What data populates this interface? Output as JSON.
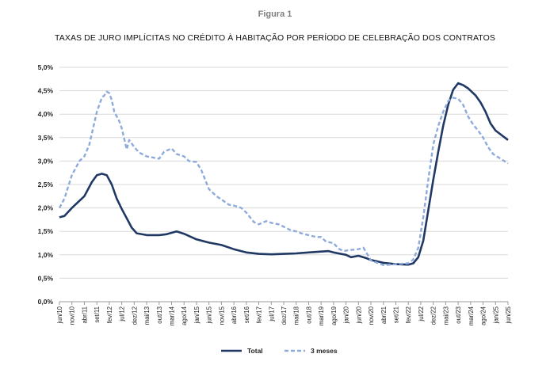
{
  "figure_label": "Figura 1",
  "chart_data": {
    "type": "line",
    "title": "TAXAS DE JURO IMPLÍCITAS NO CRÉDITO À HABITAÇÃO POR PERÍODO DE CELEBRAÇÃO DOS CONTRATOS",
    "xlabel": "",
    "ylabel": "",
    "ylim": [
      0,
      5
    ],
    "y_ticks": [
      "0,0%",
      "0,5%",
      "1,0%",
      "1,5%",
      "2,0%",
      "2,5%",
      "3,0%",
      "3,5%",
      "4,0%",
      "4,5%",
      "5,0%"
    ],
    "x_ticks": [
      "jun/10",
      "nov/10",
      "abr/11",
      "set/11",
      "fev/12",
      "jul/12",
      "dez/12",
      "mai/13",
      "out/13",
      "mar/14",
      "ago/14",
      "jan/15",
      "jun/15",
      "nov/15",
      "abr/16",
      "set/16",
      "fev/17",
      "jul/17",
      "dez/17",
      "mai/18",
      "out/18",
      "mar/19",
      "ago/19",
      "jan/20",
      "jun/20",
      "nov/20",
      "abr/21",
      "set/21",
      "fev/22",
      "jul/22",
      "dez/22",
      "mai/23",
      "out/23",
      "mar/24",
      "ago/24",
      "jan/25",
      "jun/25"
    ],
    "grid": "horizontal",
    "legend_position": "bottom",
    "colors": {
      "total": "#203864",
      "tres_meses": "#8eaadb"
    },
    "series": [
      {
        "name": "Total",
        "style": "solid",
        "points": [
          [
            "jun/10",
            1.8
          ],
          [
            "ago/10",
            1.83
          ],
          [
            "nov/10",
            2.0
          ],
          [
            "abr/11",
            2.25
          ],
          [
            "jul/11",
            2.55
          ],
          [
            "set/11",
            2.7
          ],
          [
            "nov/11",
            2.73
          ],
          [
            "jan/12",
            2.7
          ],
          [
            "mar/12",
            2.5
          ],
          [
            "mai/12",
            2.2
          ],
          [
            "jul/12",
            1.98
          ],
          [
            "set/12",
            1.78
          ],
          [
            "nov/12",
            1.58
          ],
          [
            "jan/13",
            1.46
          ],
          [
            "mai/13",
            1.42
          ],
          [
            "out/13",
            1.42
          ],
          [
            "jan/14",
            1.44
          ],
          [
            "mai/14",
            1.5
          ],
          [
            "ago/14",
            1.45
          ],
          [
            "jan/15",
            1.33
          ],
          [
            "jun/15",
            1.26
          ],
          [
            "nov/15",
            1.21
          ],
          [
            "abr/16",
            1.12
          ],
          [
            "set/16",
            1.05
          ],
          [
            "fev/17",
            1.02
          ],
          [
            "jul/17",
            1.01
          ],
          [
            "dez/17",
            1.02
          ],
          [
            "mai/18",
            1.03
          ],
          [
            "out/18",
            1.05
          ],
          [
            "mar/19",
            1.07
          ],
          [
            "jun/19",
            1.08
          ],
          [
            "ago/19",
            1.05
          ],
          [
            "nov/19",
            1.02
          ],
          [
            "jan/20",
            1.0
          ],
          [
            "mar/20",
            0.95
          ],
          [
            "jun/20",
            0.98
          ],
          [
            "set/20",
            0.93
          ],
          [
            "nov/20",
            0.89
          ],
          [
            "abr/21",
            0.83
          ],
          [
            "set/21",
            0.8
          ],
          [
            "fev/22",
            0.79
          ],
          [
            "abr/22",
            0.82
          ],
          [
            "jun/22",
            0.95
          ],
          [
            "ago/22",
            1.3
          ],
          [
            "out/22",
            1.95
          ],
          [
            "dez/22",
            2.6
          ],
          [
            "fev/23",
            3.2
          ],
          [
            "abr/23",
            3.75
          ],
          [
            "jun/23",
            4.2
          ],
          [
            "ago/23",
            4.52
          ],
          [
            "out/23",
            4.66
          ],
          [
            "dez/23",
            4.62
          ],
          [
            "fev/24",
            4.55
          ],
          [
            "mar/24",
            4.5
          ],
          [
            "mai/24",
            4.4
          ],
          [
            "jul/24",
            4.25
          ],
          [
            "set/24",
            4.05
          ],
          [
            "nov/24",
            3.8
          ],
          [
            "jan/25",
            3.65
          ],
          [
            "jun/25",
            3.45
          ]
        ]
      },
      {
        "name": "3 meses",
        "style": "dashed",
        "points": [
          [
            "jun/10",
            2.0
          ],
          [
            "ago/10",
            2.2
          ],
          [
            "nov/10",
            2.7
          ],
          [
            "fev/11",
            3.0
          ],
          [
            "abr/11",
            3.1
          ],
          [
            "jun/11",
            3.35
          ],
          [
            "set/11",
            4.05
          ],
          [
            "nov/11",
            4.35
          ],
          [
            "dez/11",
            4.4
          ],
          [
            "jan/12",
            4.48
          ],
          [
            "fev/12",
            4.45
          ],
          [
            "mar/12",
            4.3
          ],
          [
            "abr/12",
            4.05
          ],
          [
            "jun/12",
            3.85
          ],
          [
            "jul/12",
            3.7
          ],
          [
            "set/12",
            3.25
          ],
          [
            "out/12",
            3.45
          ],
          [
            "dez/12",
            3.3
          ],
          [
            "fev/13",
            3.18
          ],
          [
            "mai/13",
            3.1
          ],
          [
            "out/13",
            3.05
          ],
          [
            "dez/13",
            3.2
          ],
          [
            "mar/14",
            3.27
          ],
          [
            "mai/14",
            3.15
          ],
          [
            "ago/14",
            3.1
          ],
          [
            "out/14",
            3.0
          ],
          [
            "jan/15",
            2.98
          ],
          [
            "mar/15",
            2.8
          ],
          [
            "jun/15",
            2.4
          ],
          [
            "set/15",
            2.25
          ],
          [
            "nov/15",
            2.18
          ],
          [
            "fev/16",
            2.07
          ],
          [
            "abr/16",
            2.05
          ],
          [
            "jul/16",
            2.0
          ],
          [
            "set/16",
            1.9
          ],
          [
            "dez/16",
            1.7
          ],
          [
            "fev/17",
            1.65
          ],
          [
            "mai/17",
            1.72
          ],
          [
            "jul/17",
            1.68
          ],
          [
            "out/17",
            1.65
          ],
          [
            "dez/17",
            1.6
          ],
          [
            "mar/18",
            1.52
          ],
          [
            "mai/18",
            1.5
          ],
          [
            "jul/18",
            1.46
          ],
          [
            "out/18",
            1.42
          ],
          [
            "jan/19",
            1.38
          ],
          [
            "mar/19",
            1.38
          ],
          [
            "mai/19",
            1.28
          ],
          [
            "ago/19",
            1.25
          ],
          [
            "out/19",
            1.13
          ],
          [
            "dez/19",
            1.08
          ],
          [
            "fev/20",
            1.1
          ],
          [
            "jun/20",
            1.12
          ],
          [
            "ago/20",
            1.15
          ],
          [
            "nov/20",
            0.88
          ],
          [
            "abr/21",
            0.78
          ],
          [
            "set/21",
            0.8
          ],
          [
            "fev/22",
            0.82
          ],
          [
            "abr/22",
            0.9
          ],
          [
            "jun/22",
            1.15
          ],
          [
            "ago/22",
            1.8
          ],
          [
            "out/22",
            2.6
          ],
          [
            "dez/22",
            3.35
          ],
          [
            "fev/23",
            3.75
          ],
          [
            "abr/23",
            4.05
          ],
          [
            "jun/23",
            4.28
          ],
          [
            "ago/23",
            4.35
          ],
          [
            "out/23",
            4.33
          ],
          [
            "dez/23",
            4.2
          ],
          [
            "fev/24",
            3.95
          ],
          [
            "abr/24",
            3.78
          ],
          [
            "jun/24",
            3.65
          ],
          [
            "ago/24",
            3.5
          ],
          [
            "out/24",
            3.3
          ],
          [
            "dez/24",
            3.15
          ],
          [
            "mar/25",
            3.05
          ],
          [
            "jun/25",
            2.95
          ]
        ]
      }
    ]
  }
}
